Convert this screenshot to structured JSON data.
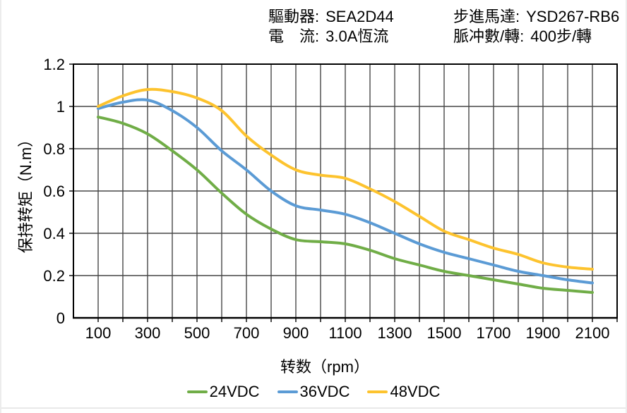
{
  "header": {
    "driver": {
      "label": "驅動器:",
      "value": "SEA2D44"
    },
    "current": {
      "label": "電　流:",
      "value": "3.0A恆流"
    },
    "motor": {
      "label": "步進馬達:",
      "value": "YSD267-RB6"
    },
    "pulses": {
      "label": "脈冲數/轉:",
      "value": "400步/轉"
    }
  },
  "chart_data": {
    "type": "line",
    "title": "",
    "xlabel": "转数（rpm）",
    "ylabel": "保持转矩（N.m）",
    "xlim": [
      0,
      2200
    ],
    "ylim": [
      0,
      1.2
    ],
    "grid": true,
    "legend_position": "bottom",
    "x": [
      100,
      200,
      300,
      400,
      500,
      600,
      700,
      800,
      900,
      1000,
      1100,
      1200,
      1300,
      1400,
      1500,
      1600,
      1700,
      1800,
      1900,
      2000,
      2100
    ],
    "x_ticks": [
      100,
      300,
      500,
      700,
      900,
      1100,
      1300,
      1500,
      1700,
      1900,
      2100
    ],
    "y_ticks": [
      0,
      0.2,
      0.4,
      0.6,
      0.8,
      1,
      1.2
    ],
    "y_tick_labels": [
      "0",
      "0.2",
      "0.4",
      "0.6",
      "0.8",
      "1",
      "1.2"
    ],
    "series": [
      {
        "name": "24VDC",
        "color": "#70ad47",
        "values": [
          0.95,
          0.92,
          0.87,
          0.79,
          0.7,
          0.59,
          0.49,
          0.42,
          0.37,
          0.36,
          0.35,
          0.32,
          0.28,
          0.25,
          0.22,
          0.2,
          0.18,
          0.16,
          0.14,
          0.13,
          0.12
        ]
      },
      {
        "name": "36VDC",
        "color": "#5b9bd5",
        "values": [
          0.99,
          1.02,
          1.03,
          0.98,
          0.9,
          0.79,
          0.7,
          0.6,
          0.53,
          0.51,
          0.49,
          0.45,
          0.4,
          0.35,
          0.31,
          0.28,
          0.25,
          0.22,
          0.2,
          0.18,
          0.165
        ]
      },
      {
        "name": "48VDC",
        "color": "#fdc32e",
        "values": [
          1.0,
          1.05,
          1.08,
          1.07,
          1.04,
          0.98,
          0.86,
          0.77,
          0.7,
          0.675,
          0.66,
          0.61,
          0.55,
          0.48,
          0.41,
          0.37,
          0.33,
          0.3,
          0.26,
          0.24,
          0.23
        ]
      }
    ]
  }
}
